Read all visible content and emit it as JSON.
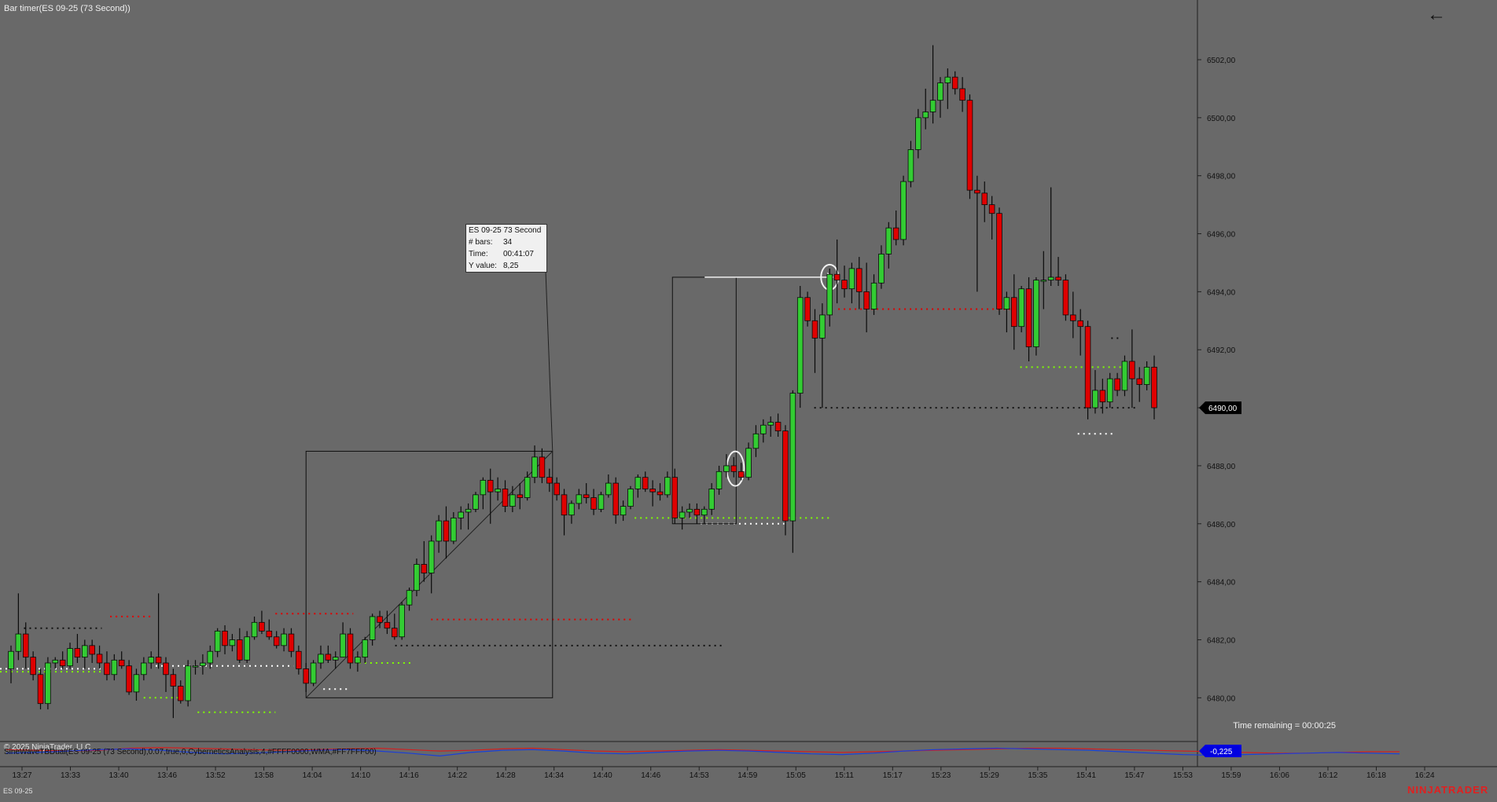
{
  "window": {
    "title": "Bar timer(ES 09-25 (73 Second))",
    "back_icon": "arrow-left-icon"
  },
  "tooltip": {
    "header": "ES 09-25 73 Second",
    "bars_label": "# bars:",
    "bars": "34",
    "time_label": "Time:",
    "time": "00:41:07",
    "yvalue_label": "Y value:",
    "yvalue": "8,25"
  },
  "status": {
    "time_remaining": "Time remaining = 00:00:25",
    "copyright": "© 2025 NinjaTrader, LLC",
    "indicator": "SineWaveTBDual(ES 09-25 (73 Second),0.07,true,0,CyberneticsAnalysis,4,#FFFF0000,WMA,#FF7FFF00)",
    "instrument": "ES 09-25",
    "brand": "NINJATRADER"
  },
  "colors": {
    "background": "#696969",
    "up": "#33cc33",
    "down": "#e00000",
    "sine_red": "#d02020",
    "sine_blue": "#1a3fd8",
    "last_price_bg": "#000000",
    "osc_value_bg": "#0000e0"
  },
  "chart_data": {
    "type": "candlestick",
    "instrument": "ES 09-25",
    "interval": "73 Second",
    "ylim": [
      6478.6,
      6503.3
    ],
    "y_ticks": [
      "6480,00",
      "6482,00",
      "6484,00",
      "6486,00",
      "6488,00",
      "6490,00",
      "6492,00",
      "6494,00",
      "6496,00",
      "6498,00",
      "6500,00",
      "6502,00"
    ],
    "y_tick_values": [
      6480,
      6482,
      6484,
      6486,
      6488,
      6490,
      6492,
      6494,
      6496,
      6498,
      6500,
      6502
    ],
    "x_ticks": [
      "13:27",
      "13:33",
      "13:40",
      "13:46",
      "13:52",
      "13:58",
      "14:04",
      "14:10",
      "14:16",
      "14:22",
      "14:28",
      "14:34",
      "14:40",
      "14:46",
      "14:53",
      "14:59",
      "15:05",
      "15:11",
      "15:17",
      "15:23",
      "15:29",
      "15:35",
      "15:41",
      "15:47",
      "15:53",
      "15:59",
      "16:06",
      "16:12",
      "16:18",
      "16:24"
    ],
    "last_price": "6490,00",
    "last_price_value": 6490.0,
    "oscillator_value": "-0,225",
    "candles": [
      [
        6481.0,
        6481.8,
        6480.5,
        6481.6
      ],
      [
        6481.6,
        6483.6,
        6481.3,
        6482.2
      ],
      [
        6482.2,
        6482.6,
        6481.0,
        6481.4
      ],
      [
        6481.4,
        6481.6,
        6480.6,
        6480.8
      ],
      [
        6480.8,
        6481.0,
        6479.6,
        6479.8
      ],
      [
        6479.8,
        6481.4,
        6479.6,
        6481.2
      ],
      [
        6481.2,
        6481.4,
        6481.0,
        6481.3
      ],
      [
        6481.3,
        6481.6,
        6481.0,
        6481.1
      ],
      [
        6481.1,
        6481.9,
        6481.0,
        6481.7
      ],
      [
        6481.7,
        6482.2,
        6481.2,
        6481.4
      ],
      [
        6481.4,
        6482.0,
        6481.0,
        6481.8
      ],
      [
        6481.8,
        6482.0,
        6481.2,
        6481.5
      ],
      [
        6481.5,
        6481.8,
        6481.0,
        6481.2
      ],
      [
        6481.2,
        6481.6,
        6480.6,
        6480.8
      ],
      [
        6480.8,
        6481.5,
        6480.6,
        6481.3
      ],
      [
        6481.3,
        6481.6,
        6481.0,
        6481.1
      ],
      [
        6481.1,
        6481.3,
        6480.1,
        6480.2
      ],
      [
        6480.2,
        6481.0,
        6479.9,
        6480.8
      ],
      [
        6480.8,
        6481.4,
        6480.6,
        6481.2
      ],
      [
        6481.2,
        6481.6,
        6481.0,
        6481.4
      ],
      [
        6481.4,
        6483.6,
        6481.0,
        6481.2
      ],
      [
        6481.2,
        6481.4,
        6480.2,
        6480.8
      ],
      [
        6480.8,
        6481.0,
        6479.3,
        6480.4
      ],
      [
        6480.4,
        6480.6,
        6479.8,
        6479.9
      ],
      [
        6479.9,
        6481.3,
        6479.7,
        6481.1
      ],
      [
        6481.1,
        6481.3,
        6480.8,
        6481.1
      ],
      [
        6481.1,
        6481.5,
        6480.8,
        6481.2
      ],
      [
        6481.2,
        6481.8,
        6481.0,
        6481.6
      ],
      [
        6481.6,
        6482.4,
        6481.4,
        6482.3
      ],
      [
        6482.3,
        6482.5,
        6481.5,
        6481.8
      ],
      [
        6481.8,
        6482.2,
        6481.6,
        6482.0
      ],
      [
        6482.0,
        6482.4,
        6481.2,
        6481.3
      ],
      [
        6481.3,
        6482.3,
        6481.2,
        6482.1
      ],
      [
        6482.1,
        6482.8,
        6482.0,
        6482.6
      ],
      [
        6482.6,
        6483.0,
        6482.2,
        6482.3
      ],
      [
        6482.3,
        6482.7,
        6482.0,
        6482.1
      ],
      [
        6482.1,
        6482.3,
        6481.7,
        6481.8
      ],
      [
        6481.8,
        6482.4,
        6481.6,
        6482.2
      ],
      [
        6482.2,
        6482.4,
        6481.4,
        6481.6
      ],
      [
        6481.6,
        6481.8,
        6480.8,
        6481.0
      ],
      [
        6481.0,
        6481.2,
        6480.2,
        6480.5
      ],
      [
        6480.5,
        6481.3,
        6480.4,
        6481.2
      ],
      [
        6481.2,
        6481.8,
        6481.0,
        6481.5
      ],
      [
        6481.5,
        6481.8,
        6481.2,
        6481.3
      ],
      [
        6481.3,
        6481.6,
        6481.0,
        6481.4
      ],
      [
        6481.4,
        6482.6,
        6481.4,
        6482.2
      ],
      [
        6482.2,
        6482.4,
        6481.0,
        6481.2
      ],
      [
        6481.2,
        6481.6,
        6480.9,
        6481.4
      ],
      [
        6481.4,
        6482.1,
        6481.2,
        6482.0
      ],
      [
        6482.0,
        6482.9,
        6481.8,
        6482.8
      ],
      [
        6482.8,
        6483.0,
        6482.4,
        6482.6
      ],
      [
        6482.6,
        6483.0,
        6482.2,
        6482.4
      ],
      [
        6482.4,
        6482.9,
        6482.0,
        6482.1
      ],
      [
        6482.1,
        6483.3,
        6482.0,
        6483.2
      ],
      [
        6483.2,
        6483.8,
        6483.0,
        6483.7
      ],
      [
        6483.7,
        6484.8,
        6483.5,
        6484.6
      ],
      [
        6484.6,
        6485.4,
        6484.0,
        6484.3
      ],
      [
        6484.3,
        6485.6,
        6483.6,
        6485.4
      ],
      [
        6485.4,
        6486.3,
        6485.0,
        6486.1
      ],
      [
        6486.1,
        6486.6,
        6484.8,
        6485.4
      ],
      [
        6485.4,
        6486.4,
        6485.3,
        6486.2
      ],
      [
        6486.2,
        6486.6,
        6485.8,
        6486.4
      ],
      [
        6486.4,
        6486.7,
        6485.8,
        6486.5
      ],
      [
        6486.5,
        6487.1,
        6486.4,
        6487.0
      ],
      [
        6487.0,
        6487.6,
        6486.5,
        6487.5
      ],
      [
        6487.5,
        6487.9,
        6486.0,
        6487.1
      ],
      [
        6487.1,
        6487.6,
        6486.8,
        6487.2
      ],
      [
        6487.2,
        6487.5,
        6486.4,
        6486.6
      ],
      [
        6486.6,
        6487.3,
        6486.4,
        6487.0
      ],
      [
        6487.0,
        6487.4,
        6486.5,
        6486.9
      ],
      [
        6486.9,
        6487.8,
        6486.8,
        6487.6
      ],
      [
        6487.6,
        6488.7,
        6487.4,
        6488.3
      ],
      [
        6488.3,
        6488.6,
        6487.4,
        6487.6
      ],
      [
        6487.6,
        6487.9,
        6487.1,
        6487.4
      ],
      [
        6487.4,
        6487.6,
        6486.8,
        6487.0
      ],
      [
        6487.0,
        6487.2,
        6485.6,
        6486.3
      ],
      [
        6486.3,
        6486.8,
        6486.0,
        6486.7
      ],
      [
        6486.7,
        6487.2,
        6486.5,
        6487.0
      ],
      [
        6487.0,
        6487.4,
        6486.7,
        6486.9
      ],
      [
        6486.9,
        6487.2,
        6486.3,
        6486.5
      ],
      [
        6486.5,
        6487.1,
        6486.4,
        6487.0
      ],
      [
        6487.0,
        6487.7,
        6486.9,
        6487.4
      ],
      [
        6487.4,
        6487.6,
        6486.0,
        6486.3
      ],
      [
        6486.3,
        6486.8,
        6486.1,
        6486.6
      ],
      [
        6486.6,
        6487.3,
        6486.5,
        6487.2
      ],
      [
        6487.2,
        6487.7,
        6486.9,
        6487.6
      ],
      [
        6487.6,
        6487.8,
        6487.1,
        6487.2
      ],
      [
        6487.2,
        6487.5,
        6486.6,
        6487.1
      ],
      [
        6487.1,
        6487.4,
        6486.8,
        6487.0
      ],
      [
        6487.0,
        6487.8,
        6486.9,
        6487.6
      ],
      [
        6487.6,
        6487.9,
        6486.0,
        6486.2
      ],
      [
        6486.2,
        6486.6,
        6485.8,
        6486.4
      ],
      [
        6486.4,
        6486.7,
        6486.2,
        6486.5
      ],
      [
        6486.5,
        6486.7,
        6486.0,
        6486.3
      ],
      [
        6486.3,
        6486.6,
        6486.0,
        6486.5
      ],
      [
        6486.5,
        6487.4,
        6486.3,
        6487.2
      ],
      [
        6487.2,
        6488.0,
        6487.0,
        6487.8
      ],
      [
        6487.8,
        6488.4,
        6487.6,
        6488.0
      ],
      [
        6488.0,
        6488.3,
        6487.6,
        6487.8
      ],
      [
        6487.8,
        6488.1,
        6487.5,
        6487.6
      ],
      [
        6487.6,
        6488.8,
        6487.5,
        6488.6
      ],
      [
        6488.6,
        6489.4,
        6488.3,
        6489.1
      ],
      [
        6489.1,
        6489.6,
        6488.8,
        6489.4
      ],
      [
        6489.4,
        6489.7,
        6489.0,
        6489.5
      ],
      [
        6489.5,
        6489.8,
        6489.0,
        6489.2
      ],
      [
        6489.2,
        6489.4,
        6485.6,
        6486.1
      ],
      [
        6486.1,
        6490.6,
        6485.0,
        6490.5
      ],
      [
        6490.5,
        6494.2,
        6490.0,
        6493.8
      ],
      [
        6493.8,
        6494.0,
        6492.8,
        6493.0
      ],
      [
        6493.0,
        6493.4,
        6491.2,
        6492.4
      ],
      [
        6492.4,
        6493.6,
        6490.0,
        6493.2
      ],
      [
        6493.2,
        6494.8,
        6492.8,
        6494.6
      ],
      [
        6494.6,
        6495.8,
        6493.6,
        6494.4
      ],
      [
        6494.4,
        6494.9,
        6493.8,
        6494.1
      ],
      [
        6494.1,
        6495.0,
        6493.6,
        6494.8
      ],
      [
        6494.8,
        6495.2,
        6493.4,
        6494.0
      ],
      [
        6494.0,
        6495.0,
        6492.6,
        6493.4
      ],
      [
        6493.4,
        6494.6,
        6493.2,
        6494.3
      ],
      [
        6494.3,
        6495.6,
        6494.1,
        6495.3
      ],
      [
        6495.3,
        6496.4,
        6494.8,
        6496.2
      ],
      [
        6496.2,
        6496.8,
        6495.6,
        6495.8
      ],
      [
        6495.8,
        6498.0,
        6495.6,
        6497.8
      ],
      [
        6497.8,
        6499.2,
        6497.6,
        6498.9
      ],
      [
        6498.9,
        6500.3,
        6498.6,
        6500.0
      ],
      [
        6500.0,
        6501.0,
        6499.6,
        6500.2
      ],
      [
        6500.2,
        6502.5,
        6499.8,
        6500.6
      ],
      [
        6500.6,
        6501.4,
        6500.0,
        6501.2
      ],
      [
        6501.2,
        6501.7,
        6500.3,
        6501.4
      ],
      [
        6501.4,
        6501.6,
        6500.8,
        6501.0
      ],
      [
        6501.0,
        6501.4,
        6500.2,
        6500.6
      ],
      [
        6500.6,
        6500.8,
        6497.2,
        6497.5
      ],
      [
        6497.5,
        6498.0,
        6494.0,
        6497.4
      ],
      [
        6497.4,
        6497.8,
        6496.4,
        6497.0
      ],
      [
        6497.0,
        6497.3,
        6495.8,
        6496.7
      ],
      [
        6496.7,
        6496.9,
        6493.2,
        6493.4
      ],
      [
        6493.4,
        6494.0,
        6492.6,
        6493.8
      ],
      [
        6493.8,
        6494.6,
        6492.0,
        6492.8
      ],
      [
        6492.8,
        6494.2,
        6492.6,
        6494.1
      ],
      [
        6494.1,
        6494.5,
        6491.6,
        6492.1
      ],
      [
        6492.1,
        6494.5,
        6491.8,
        6494.4
      ],
      [
        6494.4,
        6495.4,
        6493.4,
        6494.4
      ],
      [
        6494.4,
        6497.6,
        6494.2,
        6494.5
      ],
      [
        6494.5,
        6495.2,
        6494.2,
        6494.4
      ],
      [
        6494.4,
        6494.6,
        6493.0,
        6493.2
      ],
      [
        6493.2,
        6494.0,
        6492.4,
        6493.0
      ],
      [
        6493.0,
        6493.4,
        6491.8,
        6492.8
      ],
      [
        6492.8,
        6493.0,
        6489.6,
        6490.0
      ],
      [
        6490.0,
        6491.3,
        6489.8,
        6490.6
      ],
      [
        6490.6,
        6491.0,
        6489.8,
        6490.2
      ],
      [
        6490.2,
        6491.2,
        6490.0,
        6491.0
      ],
      [
        6491.0,
        6491.2,
        6490.4,
        6490.6
      ],
      [
        6490.6,
        6491.8,
        6490.4,
        6491.6
      ],
      [
        6491.6,
        6492.7,
        6490.0,
        6491.0
      ],
      [
        6491.0,
        6491.4,
        6490.2,
        6490.8
      ],
      [
        6490.8,
        6491.6,
        6490.6,
        6491.4
      ],
      [
        6491.4,
        6491.8,
        6489.6,
        6490.0
      ]
    ],
    "levels": [
      {
        "y": 6482.4,
        "x0": 0.02,
        "x1": 0.085,
        "color": "#101010"
      },
      {
        "y": 6482.8,
        "x0": 0.092,
        "x1": 0.128,
        "color": "#e00000"
      },
      {
        "y": 6481.0,
        "x0": 0.0,
        "x1": 0.09,
        "color": "#ffffff"
      },
      {
        "y": 6480.9,
        "x0": 0.0,
        "x1": 0.09,
        "color": "#7fff00"
      },
      {
        "y": 6480.0,
        "x0": 0.12,
        "x1": 0.15,
        "color": "#7fff00"
      },
      {
        "y": 6481.1,
        "x0": 0.13,
        "x1": 0.245,
        "color": "#ffffff"
      },
      {
        "y": 6479.5,
        "x0": 0.165,
        "x1": 0.23,
        "color": "#7fff00"
      },
      {
        "y": 6482.9,
        "x0": 0.23,
        "x1": 0.295,
        "color": "#e00000"
      },
      {
        "y": 6480.3,
        "x0": 0.27,
        "x1": 0.29,
        "color": "#ffffff"
      },
      {
        "y": 6481.2,
        "x0": 0.3,
        "x1": 0.345,
        "color": "#7fff00"
      },
      {
        "y": 6482.7,
        "x0": 0.36,
        "x1": 0.53,
        "color": "#e00000"
      },
      {
        "y": 6481.8,
        "x0": 0.33,
        "x1": 0.605,
        "color": "#101010"
      },
      {
        "y": 6486.2,
        "x0": 0.53,
        "x1": 0.695,
        "color": "#7fff00"
      },
      {
        "y": 6486.0,
        "x0": 0.585,
        "x1": 0.655,
        "color": "#ffffff"
      },
      {
        "y": 6490.0,
        "x0": 0.68,
        "x1": 0.95,
        "color": "#101010"
      },
      {
        "y": 6493.4,
        "x0": 0.7,
        "x1": 0.845,
        "color": "#e00000"
      },
      {
        "y": 6491.4,
        "x0": 0.852,
        "x1": 0.94,
        "color": "#7fff00"
      },
      {
        "y": 6489.1,
        "x0": 0.9,
        "x1": 0.93,
        "color": "#ffffff"
      },
      {
        "y": 6492.4,
        "x0": 0.928,
        "x1": 0.935,
        "color": "#101010"
      }
    ],
    "oscillator": {
      "red": [
        0.3,
        0.2,
        0.1,
        0.2,
        0.5,
        0.6,
        0.5,
        0.4,
        0.3,
        0.2,
        0.3,
        0.4,
        0.5,
        0.3,
        0.1,
        0.2,
        0.4,
        0.5,
        0.3,
        0.1,
        0.0,
        0.1,
        0.2,
        0.3,
        0.2,
        0.1,
        0.0,
        -0.1,
        0.0,
        0.1,
        0.2,
        0.3,
        0.4,
        0.5,
        0.5,
        0.4,
        0.3,
        0.2,
        0.1,
        0.0,
        -0.1,
        -0.2,
        -0.2,
        -0.1,
        0.0,
        0.0
      ],
      "blue": [
        -0.2,
        -0.1,
        0.1,
        0.3,
        0.4,
        0.2,
        -0.1,
        -0.3,
        -0.2,
        0.0,
        0.2,
        0.3,
        0.1,
        -0.2,
        -0.6,
        -0.1,
        0.2,
        0.3,
        0.1,
        -0.2,
        -0.3,
        -0.1,
        0.1,
        0.2,
        0.1,
        -0.1,
        -0.3,
        -0.4,
        -0.2,
        0.1,
        0.3,
        0.4,
        0.5,
        0.4,
        0.3,
        0.2,
        0.0,
        -0.2,
        -0.4,
        -0.5,
        -0.4,
        -0.3,
        -0.2,
        -0.1,
        -0.2,
        -0.3
      ]
    }
  }
}
